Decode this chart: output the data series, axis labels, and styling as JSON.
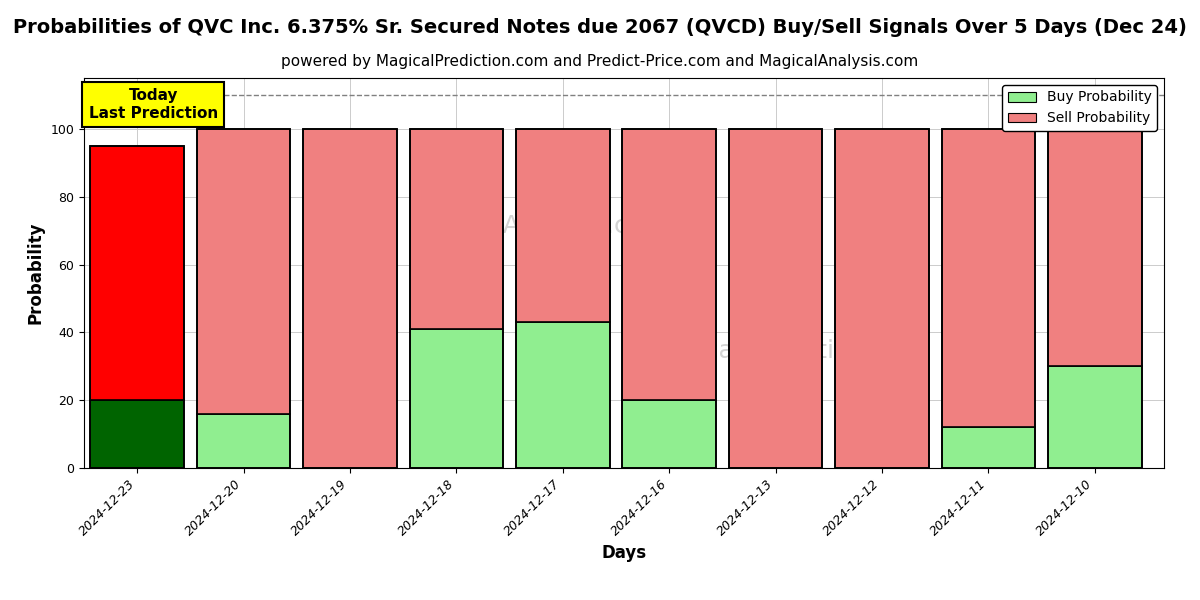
{
  "title": "Probabilities of QVC Inc. 6.375% Sr. Secured Notes due 2067 (QVCD) Buy/Sell Signals Over 5 Days (Dec 24)",
  "subtitle": "powered by MagicalPrediction.com and Predict-Price.com and MagicalAnalysis.com",
  "xlabel": "Days",
  "ylabel": "Probability",
  "categories": [
    "2024-12-23",
    "2024-12-20",
    "2024-12-19",
    "2024-12-18",
    "2024-12-17",
    "2024-12-16",
    "2024-12-13",
    "2024-12-12",
    "2024-12-11",
    "2024-12-10"
  ],
  "buy_values": [
    20,
    16,
    0,
    41,
    43,
    20,
    0,
    0,
    12,
    30
  ],
  "sell_values": [
    75,
    84,
    100,
    59,
    57,
    80,
    100,
    100,
    88,
    70
  ],
  "buy_color_today": "#006400",
  "sell_color_today": "#FF0000",
  "buy_color_normal": "#90EE90",
  "sell_color_normal": "#F08080",
  "today_label": "Today\nLast Prediction",
  "today_box_color": "#FFFF00",
  "today_box_edge": "#000000",
  "ylim": [
    0,
    115
  ],
  "dashed_line_y": 110,
  "background_color": "#ffffff",
  "plot_bg_color": "#ffffff",
  "grid_color": "#cccccc",
  "title_fontsize": 14,
  "subtitle_fontsize": 11,
  "axis_label_fontsize": 12,
  "tick_fontsize": 9,
  "bar_width": 0.88,
  "bar_edge_color": "#000000",
  "bar_edge_width": 1.2
}
